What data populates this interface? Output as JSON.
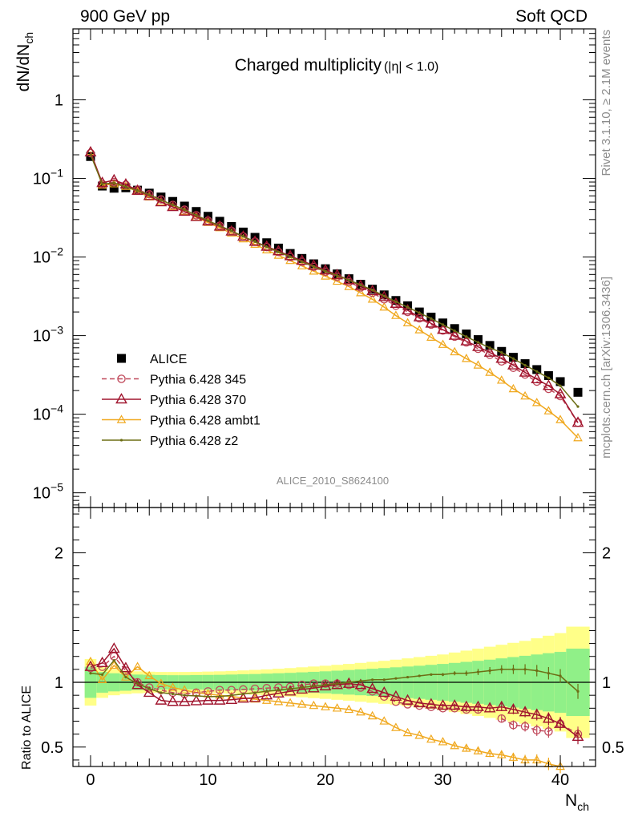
{
  "header": {
    "left": "900 GeV pp",
    "right": "Soft QCD"
  },
  "side_labels": {
    "top": "Rivet 3.1.10, ≥ 2.1M events",
    "bottom": "mcplots.cern.ch [arXiv:1306.3436]"
  },
  "chart_data": [
    {
      "type": "scatter",
      "panel": "main",
      "title": "Charged multiplicity",
      "title_cut": "(|η| < 1.0)",
      "ylabel": "dN/dN",
      "ylabel_sub": "ch",
      "xlabel": "N",
      "xlabel_sub": "ch",
      "yscale": "log",
      "xlim": [
        -1.5,
        43
      ],
      "ylim": [
        6.5e-06,
        8
      ],
      "x_ticks": [
        0,
        10,
        20,
        30,
        40
      ],
      "y_tick_labels": [
        {
          "value": 1,
          "label": "1"
        },
        {
          "value": 0.1,
          "base": "10",
          "exp": "−1"
        },
        {
          "value": 0.01,
          "base": "10",
          "exp": "−2"
        },
        {
          "value": 0.001,
          "base": "10",
          "exp": "−3"
        },
        {
          "value": 0.0001,
          "base": "10",
          "exp": "−4"
        },
        {
          "value": 1e-05,
          "base": "10",
          "exp": "−5"
        }
      ],
      "analysis_id": "ALICE_2010_S8624100",
      "legend": {
        "placement": "lower-left",
        "entries": [
          {
            "name": "ALICE",
            "marker": "square",
            "color": "#000000"
          },
          {
            "name": "Pythia 6.428 345",
            "marker": "open-circle",
            "color": "#c0485a",
            "dash": true
          },
          {
            "name": "Pythia 6.428 370",
            "marker": "open-triangle",
            "color": "#a0152e"
          },
          {
            "name": "Pythia 6.428 ambt1",
            "marker": "open-triangle-small",
            "color": "#f0a81e"
          },
          {
            "name": "Pythia 6.428 z2",
            "marker": "dot",
            "color": "#6d6e15"
          }
        ]
      },
      "x": [
        0,
        1,
        2,
        3,
        4,
        5,
        6,
        7,
        8,
        9,
        10,
        11,
        12,
        13,
        14,
        15,
        16,
        17,
        18,
        19,
        20,
        21,
        22,
        23,
        24,
        25,
        26,
        27,
        28,
        29,
        30,
        31,
        32,
        33,
        34,
        35,
        36,
        37,
        38,
        39,
        40,
        41.5
      ],
      "alice": [
        0.19,
        0.08,
        0.075,
        0.076,
        0.071,
        0.065,
        0.058,
        0.051,
        0.0445,
        0.038,
        0.033,
        0.0285,
        0.0245,
        0.0208,
        0.0178,
        0.0152,
        0.013,
        0.0111,
        0.0096,
        0.0082,
        0.0071,
        0.0061,
        0.0053,
        0.0045,
        0.0039,
        0.0033,
        0.0028,
        0.0024,
        0.002,
        0.00172,
        0.00145,
        0.00123,
        0.00105,
        0.00089,
        0.00075,
        0.00063,
        0.00053,
        0.00044,
        0.00037,
        0.00031,
        0.00026,
        0.00019
      ],
      "p345": [
        0.21,
        0.085,
        0.09,
        0.083,
        0.072,
        0.063,
        0.054,
        0.046,
        0.04,
        0.034,
        0.029,
        0.025,
        0.0215,
        0.0183,
        0.0157,
        0.0134,
        0.0116,
        0.01,
        0.0087,
        0.0075,
        0.0065,
        0.0056,
        0.0048,
        0.0041,
        0.0035,
        0.0029,
        0.0024,
        0.002,
        0.00166,
        0.00138,
        0.00116,
        0.00097,
        0.00082,
        0.00068,
        0.00057,
        0.00047,
        0.00039,
        0.00032,
        0.00026,
        0.00021,
        0.00017,
        7.8e-05
      ],
      "p370": [
        0.215,
        0.088,
        0.095,
        0.084,
        0.07,
        0.06,
        0.05,
        0.0435,
        0.038,
        0.0325,
        0.0285,
        0.0245,
        0.0212,
        0.0182,
        0.0157,
        0.0136,
        0.0119,
        0.0103,
        0.009,
        0.0078,
        0.0068,
        0.0059,
        0.0051,
        0.0043,
        0.0037,
        0.0031,
        0.00255,
        0.0021,
        0.00172,
        0.00143,
        0.00119,
        0.001,
        0.00085,
        0.00072,
        0.00061,
        0.00051,
        0.00042,
        0.00034,
        0.00028,
        0.00023,
        0.00018,
        7.8e-05
      ],
      "ambt1": [
        0.22,
        0.082,
        0.085,
        0.079,
        0.068,
        0.058,
        0.05,
        0.044,
        0.038,
        0.032,
        0.0275,
        0.0235,
        0.0201,
        0.017,
        0.0145,
        0.0123,
        0.0105,
        0.009,
        0.0077,
        0.0066,
        0.0057,
        0.0049,
        0.0042,
        0.0035,
        0.0029,
        0.0023,
        0.0018,
        0.00145,
        0.00118,
        0.00095,
        0.00077,
        0.00062,
        0.00051,
        0.00042,
        0.00034,
        0.00027,
        0.00021,
        0.00017,
        0.00014,
        0.00011,
        8.5e-05,
        5e-05
      ],
      "z2": [
        0.2,
        0.085,
        0.088,
        0.078,
        0.07,
        0.062,
        0.053,
        0.046,
        0.04,
        0.034,
        0.029,
        0.025,
        0.0215,
        0.0183,
        0.0157,
        0.0134,
        0.0116,
        0.0101,
        0.0087,
        0.0076,
        0.0066,
        0.0058,
        0.0051,
        0.0044,
        0.0038,
        0.0032,
        0.0027,
        0.0023,
        0.00195,
        0.00165,
        0.00138,
        0.00115,
        0.00097,
        0.00082,
        0.0007,
        0.00061,
        0.00051,
        0.00042,
        0.00035,
        0.00029,
        0.00023,
        0.000125
      ]
    },
    {
      "type": "line",
      "panel": "ratio",
      "ylabel": "Ratio to ALICE",
      "ylim": [
        0.35,
        2.35
      ],
      "y_ticks": [
        0.5,
        1,
        2
      ],
      "band_edges": [
        -0.5,
        0.5,
        1.5,
        2.5,
        3.5,
        4.5,
        5.5,
        6.5,
        7.5,
        8.5,
        9.5,
        10.5,
        11.5,
        12.5,
        13.5,
        14.5,
        15.5,
        16.5,
        17.5,
        18.5,
        19.5,
        20.5,
        21.5,
        22.5,
        23.5,
        24.5,
        25.5,
        26.5,
        27.5,
        28.5,
        29.5,
        30.5,
        31.5,
        32.5,
        33.5,
        34.5,
        35.5,
        36.5,
        37.5,
        38.5,
        39.5,
        40.5,
        42.5
      ],
      "band_green": [
        0.12,
        0.08,
        0.07,
        0.065,
        0.06,
        0.058,
        0.056,
        0.055,
        0.055,
        0.056,
        0.057,
        0.058,
        0.06,
        0.062,
        0.064,
        0.067,
        0.07,
        0.073,
        0.077,
        0.081,
        0.085,
        0.09,
        0.095,
        0.1,
        0.105,
        0.11,
        0.116,
        0.122,
        0.128,
        0.135,
        0.142,
        0.15,
        0.158,
        0.166,
        0.175,
        0.185,
        0.195,
        0.205,
        0.215,
        0.225,
        0.235,
        0.26
      ],
      "band_yellow": [
        0.18,
        0.12,
        0.1,
        0.09,
        0.085,
        0.082,
        0.08,
        0.08,
        0.08,
        0.081,
        0.083,
        0.085,
        0.088,
        0.092,
        0.096,
        0.1,
        0.105,
        0.11,
        0.116,
        0.122,
        0.128,
        0.135,
        0.142,
        0.15,
        0.158,
        0.166,
        0.175,
        0.185,
        0.195,
        0.205,
        0.215,
        0.23,
        0.245,
        0.26,
        0.275,
        0.29,
        0.305,
        0.32,
        0.34,
        0.36,
        0.38,
        0.43
      ],
      "x": [
        0,
        1,
        2,
        3,
        4,
        5,
        6,
        7,
        8,
        9,
        10,
        11,
        12,
        13,
        14,
        15,
        16,
        17,
        18,
        19,
        20,
        21,
        22,
        23,
        24,
        25,
        26,
        27,
        28,
        29,
        30,
        31,
        32,
        33,
        34,
        35,
        36,
        37,
        38,
        39,
        40,
        41.5
      ],
      "series": [
        {
          "name": "Pythia 6.428 345",
          "values": [
            1.11,
            1.12,
            1.2,
            1.09,
            1.0,
            0.96,
            0.94,
            0.92,
            0.91,
            0.92,
            0.93,
            0.94,
            0.94,
            0.945,
            0.95,
            0.955,
            0.96,
            0.965,
            0.98,
            0.99,
            0.99,
            0.99,
            0.98,
            0.96,
            0.93,
            0.89,
            0.85,
            0.83,
            0.82,
            0.81,
            0.8,
            0.8,
            0.79,
            0.79,
            null,
            0.72,
            0.67,
            0.66,
            0.63,
            0.62,
            0.68,
            0.6
          ]
        },
        {
          "name": "Pythia 6.428 370",
          "values": [
            1.12,
            1.15,
            1.26,
            1.11,
            0.98,
            0.92,
            0.86,
            0.85,
            0.85,
            0.855,
            0.86,
            0.86,
            0.865,
            0.875,
            0.88,
            0.9,
            0.915,
            0.93,
            0.945,
            0.955,
            0.97,
            0.98,
            0.99,
            0.98,
            0.95,
            0.92,
            0.89,
            0.86,
            0.84,
            0.83,
            0.82,
            0.82,
            0.81,
            0.81,
            0.8,
            0.81,
            0.79,
            0.77,
            0.75,
            0.72,
            0.68,
            0.58
          ]
        },
        {
          "name": "Pythia 6.428 ambt1",
          "values": [
            1.16,
            1.02,
            1.13,
            1.04,
            1.12,
            1.05,
            0.99,
            0.96,
            0.94,
            0.92,
            0.91,
            0.9,
            0.89,
            0.88,
            0.87,
            0.86,
            0.85,
            0.84,
            0.83,
            0.82,
            0.81,
            0.8,
            0.79,
            0.77,
            0.74,
            0.7,
            0.65,
            0.61,
            0.59,
            0.56,
            0.54,
            0.51,
            0.49,
            0.47,
            0.45,
            0.44,
            0.42,
            0.4,
            0.4,
            0.37,
            0.35,
            null
          ]
        },
        {
          "name": "Pythia 6.428 z2",
          "values": [
            1.07,
            1.06,
            1.17,
            1.04,
            0.99,
            0.95,
            0.92,
            0.91,
            0.9,
            0.895,
            0.89,
            0.89,
            0.9,
            0.91,
            0.92,
            0.93,
            0.94,
            0.95,
            0.96,
            0.97,
            0.98,
            0.99,
            1.0,
            1.01,
            1.02,
            1.02,
            1.03,
            1.04,
            1.05,
            1.06,
            1.06,
            1.07,
            1.07,
            1.08,
            1.09,
            1.1,
            1.1,
            1.1,
            1.09,
            1.07,
            1.05,
            0.93
          ]
        }
      ]
    }
  ]
}
